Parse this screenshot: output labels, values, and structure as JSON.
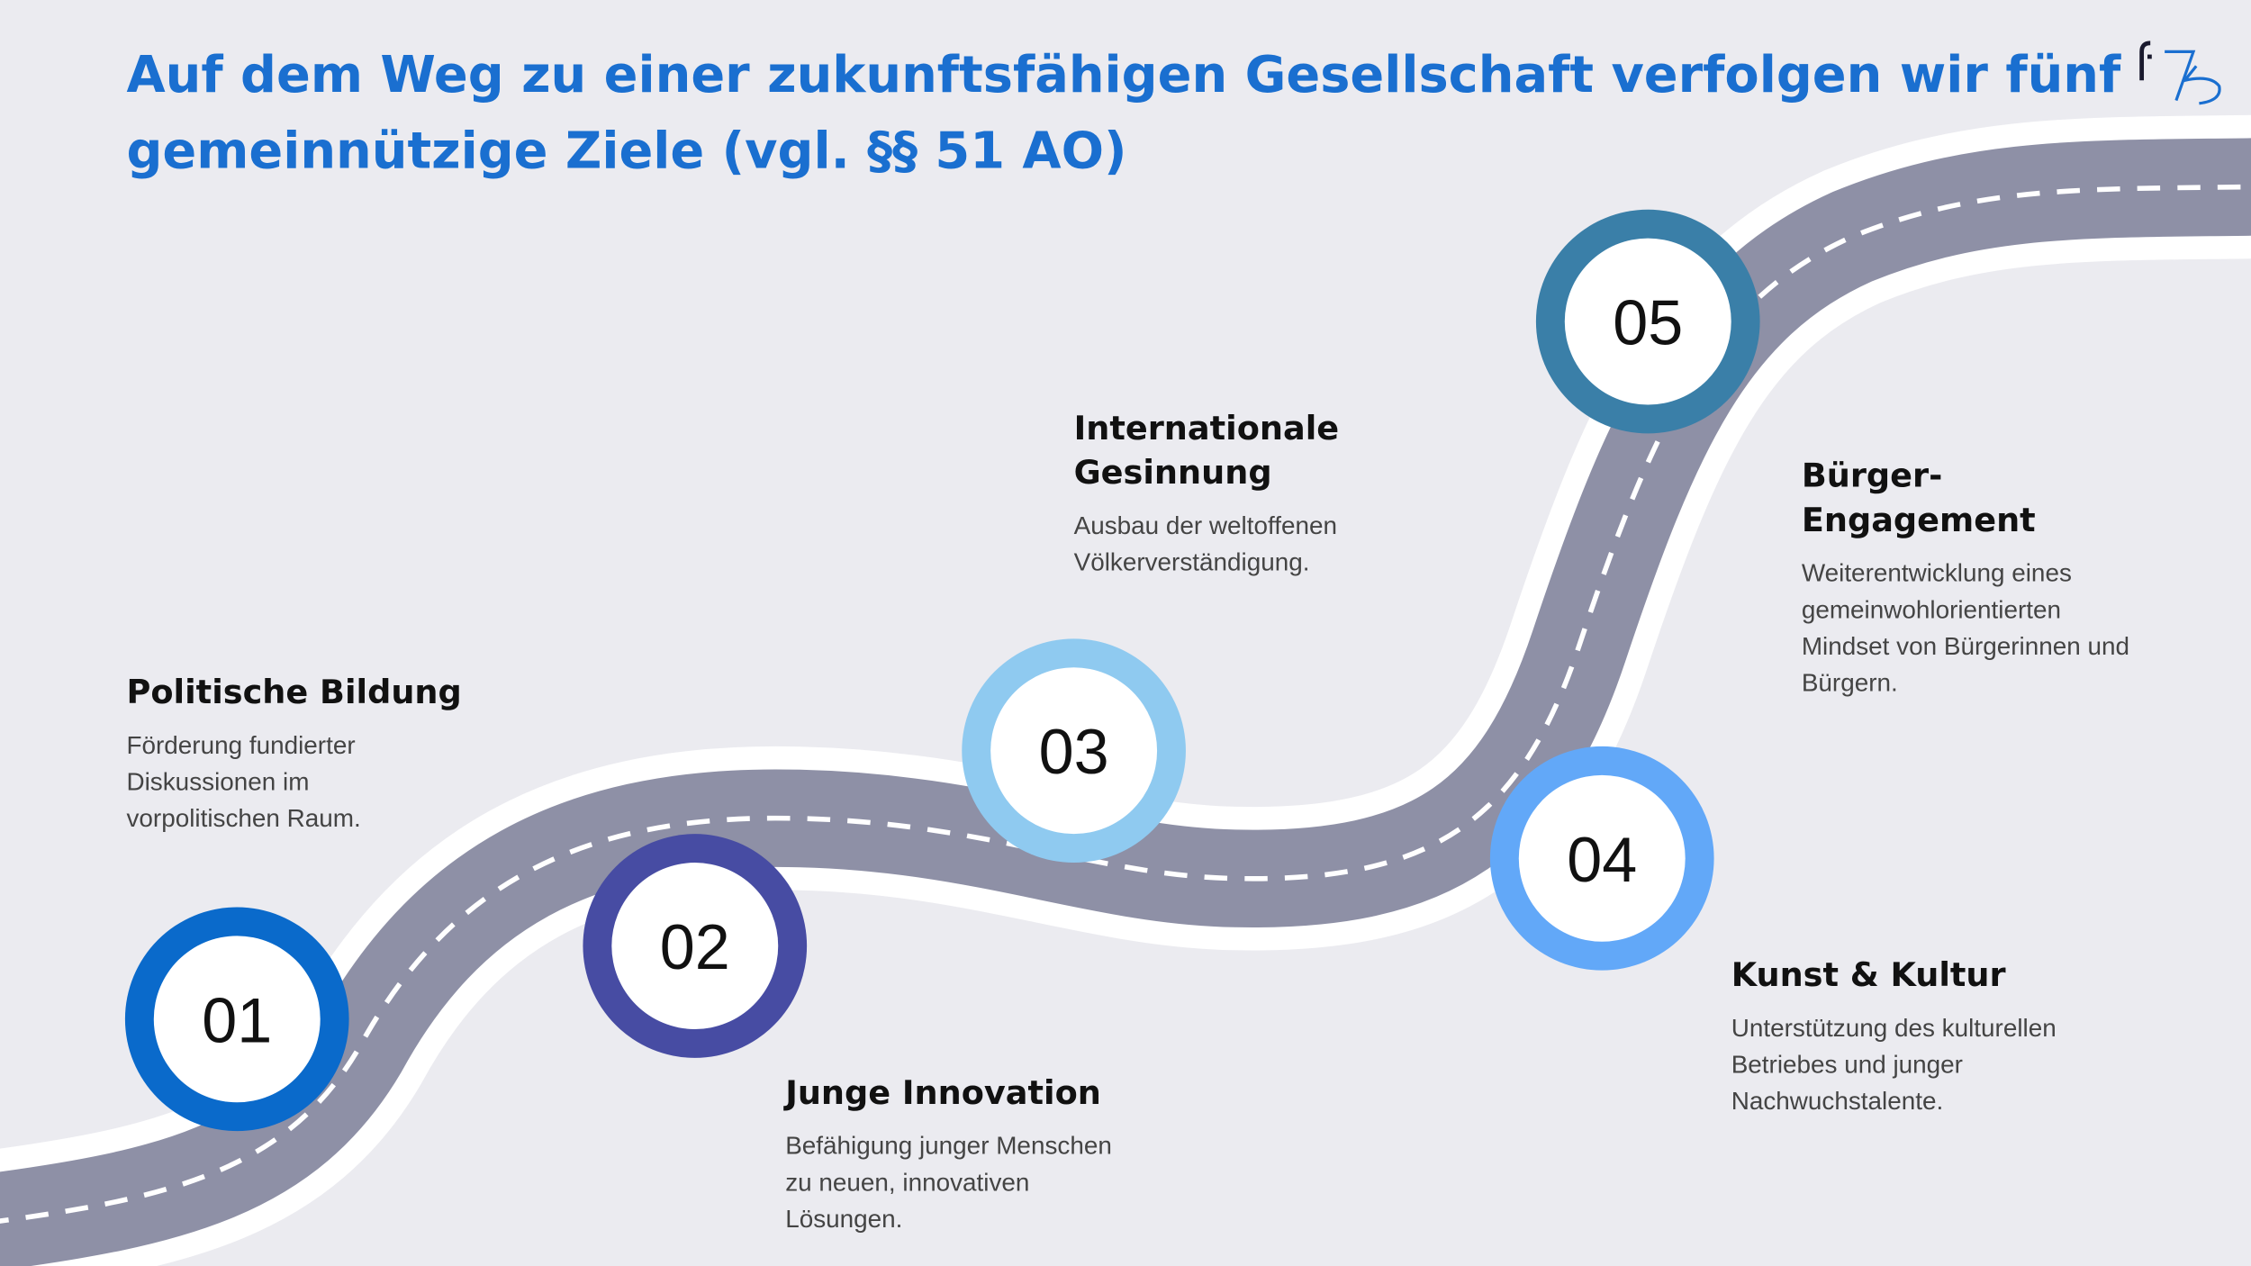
{
  "title": [
    "Auf dem Weg zu einer zukunftsfähigen Gesellschaft verfolgen wir fünf",
    "gemeinnützige Ziele (vgl. §§ 51 AO)"
  ],
  "goals": [
    {
      "number": "01",
      "heading": [
        "Politische Bildung"
      ],
      "description": [
        "Förderung fundierter",
        "Diskussionen im",
        "vorpolitischen Raum."
      ]
    },
    {
      "number": "02",
      "heading": [
        "Junge Innovation"
      ],
      "description": [
        "Befähigung junger Menschen",
        "zu neuen, innovativen",
        "Lösungen."
      ]
    },
    {
      "number": "03",
      "heading": [
        "Internationale",
        "Gesinnung"
      ],
      "description": [
        "Ausbau der weltoffenen",
        "Völkerverständigung."
      ]
    },
    {
      "number": "04",
      "heading": [
        "Kunst & Kultur"
      ],
      "description": [
        "Unterstützung des kulturellen",
        "Betriebes und junger",
        "Nachwuchstalente."
      ]
    },
    {
      "number": "05",
      "heading": [
        "Bürger-",
        "Engagement"
      ],
      "description": [
        "Weiterentwicklung eines",
        "gemeinwohlorientierten",
        "Mindset von Bürgerinnen und",
        "Bürgern."
      ]
    }
  ]
}
